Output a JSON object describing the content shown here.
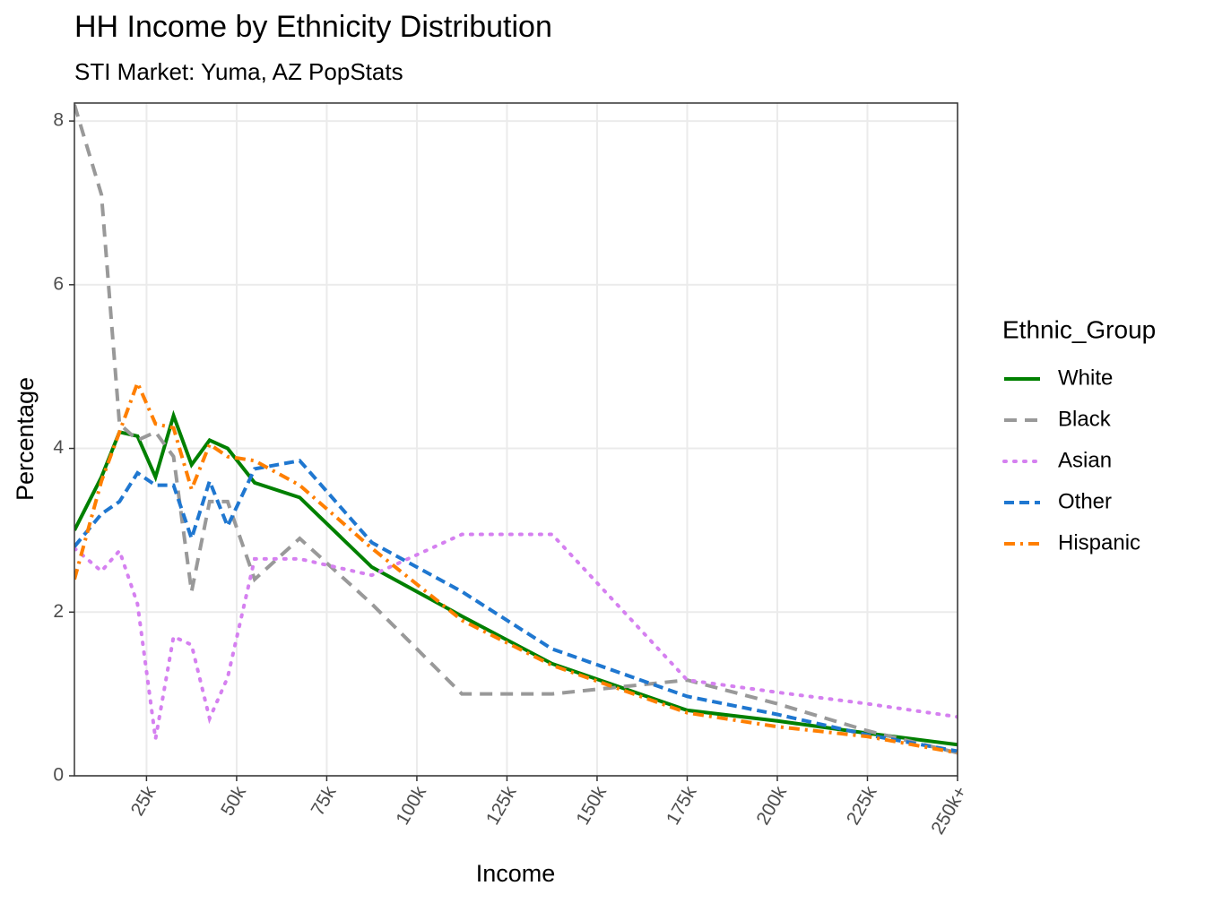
{
  "chart_data": {
    "type": "line",
    "title": "HH Income by Ethnicity Distribution",
    "subtitle": "STI Market: Yuma, AZ PopStats",
    "x_label": "Income",
    "y_label": "Percentage",
    "legend_title": "Ethnic_Group",
    "legend_position": "right",
    "grid": true,
    "x": [
      5,
      12.5,
      17.5,
      22.5,
      27.5,
      32.5,
      37.5,
      42.5,
      47.5,
      55,
      67.5,
      87.5,
      112.5,
      137.5,
      175,
      200,
      225,
      250
    ],
    "series": [
      {
        "name": "White",
        "color": "#008000",
        "dash": "solid",
        "values": [
          3.0,
          3.65,
          4.2,
          4.15,
          3.65,
          4.4,
          3.8,
          4.1,
          4.0,
          3.58,
          3.4,
          2.55,
          1.95,
          1.37,
          0.8,
          0.67,
          0.52,
          0.38
        ]
      },
      {
        "name": "Black",
        "color": "#999999",
        "dash": "longdash",
        "values": [
          8.2,
          7.1,
          4.3,
          4.1,
          4.2,
          3.9,
          2.25,
          3.35,
          3.35,
          2.4,
          2.9,
          2.1,
          1.0,
          1.0,
          1.17,
          0.88,
          0.55,
          0.28
        ]
      },
      {
        "name": "Asian",
        "color": "#d580f0",
        "dash": "dotted",
        "values": [
          2.78,
          2.5,
          2.75,
          2.1,
          0.45,
          1.7,
          1.6,
          0.7,
          1.2,
          2.65,
          2.65,
          2.45,
          2.95,
          2.95,
          1.17,
          1.02,
          0.88,
          0.72
        ]
      },
      {
        "name": "Other",
        "color": "#1f77d0",
        "dash": "dashed",
        "values": [
          2.8,
          3.2,
          3.35,
          3.7,
          3.55,
          3.55,
          2.9,
          3.6,
          3.05,
          3.75,
          3.85,
          2.85,
          2.25,
          1.55,
          0.97,
          0.75,
          0.5,
          0.3
        ]
      },
      {
        "name": "Hispanic",
        "color": "#ff7f00",
        "dash": "dotdash",
        "values": [
          2.4,
          3.6,
          4.2,
          4.8,
          4.3,
          4.25,
          3.5,
          4.05,
          3.9,
          3.85,
          3.55,
          2.78,
          1.9,
          1.35,
          0.77,
          0.6,
          0.48,
          0.28
        ]
      }
    ],
    "xlim": [
      5,
      250
    ],
    "ylim": [
      0,
      8.22
    ],
    "xticks": [
      {
        "value": 25,
        "label": "25k"
      },
      {
        "value": 50,
        "label": "50k"
      },
      {
        "value": 75,
        "label": "75k"
      },
      {
        "value": 100,
        "label": "100k"
      },
      {
        "value": 125,
        "label": "125k"
      },
      {
        "value": 150,
        "label": "150k"
      },
      {
        "value": 175,
        "label": "175k"
      },
      {
        "value": 200,
        "label": "200k"
      },
      {
        "value": 225,
        "label": "225k"
      },
      {
        "value": 250,
        "label": "250k+"
      }
    ],
    "yticks": [
      0,
      2,
      4,
      6,
      8
    ]
  }
}
